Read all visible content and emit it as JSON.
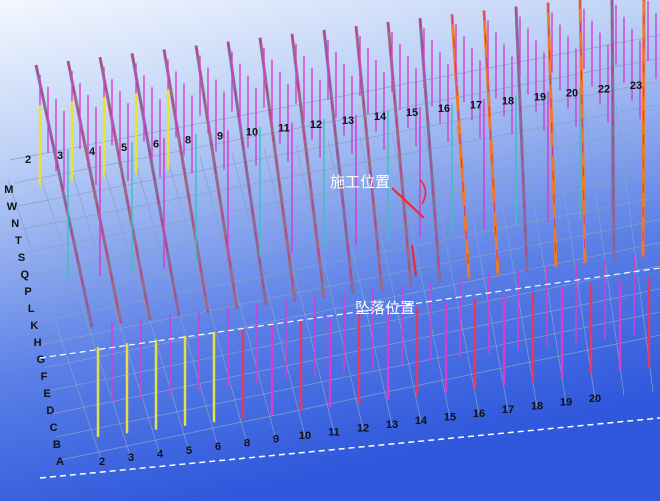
{
  "annotations": {
    "construction_position": "施工位置",
    "fall_position": "坠落位置"
  },
  "top_axis_labels": [
    "2",
    "3",
    "4",
    "5",
    "6",
    "8",
    "9",
    "10",
    "11",
    "12",
    "13",
    "14",
    "15",
    "16",
    "17",
    "18",
    "19",
    "20",
    "22",
    "23"
  ],
  "bottom_axis_labels": [
    "2",
    "3",
    "4",
    "5",
    "6",
    "8",
    "9",
    "10",
    "11",
    "12",
    "13",
    "14",
    "15",
    "16",
    "17",
    "18",
    "19",
    "20"
  ],
  "left_axis_labels": [
    "A",
    "B",
    "C",
    "D",
    "E",
    "F",
    "G",
    "H",
    "K",
    "L",
    "P",
    "Q",
    "S",
    "T",
    "N",
    "W",
    "M"
  ]
}
